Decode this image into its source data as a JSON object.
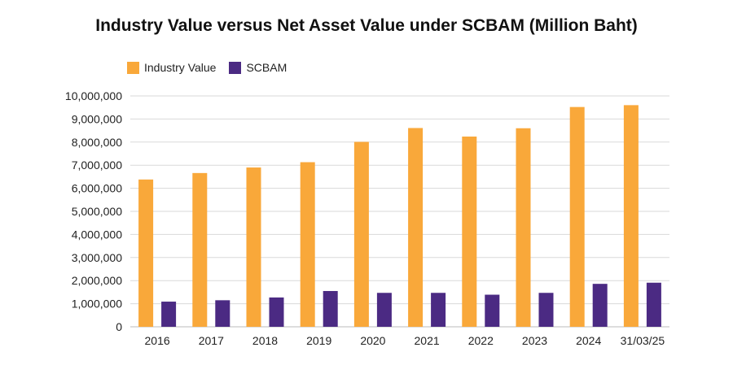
{
  "chart_data": {
    "type": "bar",
    "title": "Industry Value versus Net Asset Value under SCBAM (Million Baht)",
    "categories": [
      "2016",
      "2017",
      "2018",
      "2019",
      "2020",
      "2021",
      "2022",
      "2023",
      "2024",
      "31/03/25"
    ],
    "series": [
      {
        "name": "Industry Value",
        "color": "#F9A83A",
        "values": [
          6380000,
          6660000,
          6900000,
          7130000,
          8010000,
          8610000,
          8240000,
          8600000,
          9520000,
          9600000
        ]
      },
      {
        "name": "SCBAM",
        "color": "#4B2A83",
        "values": [
          1090000,
          1150000,
          1270000,
          1550000,
          1470000,
          1470000,
          1390000,
          1470000,
          1860000,
          1910000
        ]
      }
    ],
    "ylim": [
      0,
      10000000
    ],
    "yticks": [
      "0",
      "1,000,000",
      "2,000,000",
      "3,000,000",
      "4,000,000",
      "5,000,000",
      "6,000,000",
      "7,000,000",
      "8,000,000",
      "9,000,000",
      "10,000,000"
    ],
    "xlabel": "",
    "ylabel": "",
    "grid": true,
    "legend_position": "top-left"
  }
}
